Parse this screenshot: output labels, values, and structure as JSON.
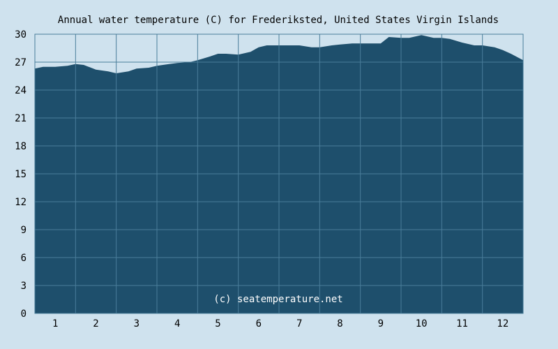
{
  "chart_data": {
    "type": "area",
    "title": "Annual water temperature (C) for Frederiksted, United States Virgin Islands",
    "watermark": "(c) seatemperature.net",
    "xlabel": "",
    "ylabel": "",
    "x_categories": [
      "1",
      "2",
      "3",
      "4",
      "5",
      "6",
      "7",
      "8",
      "9",
      "10",
      "11",
      "12"
    ],
    "y_ticks": [
      "0",
      "3",
      "6",
      "9",
      "12",
      "15",
      "18",
      "21",
      "24",
      "27",
      "30"
    ],
    "ylim": [
      0,
      30
    ],
    "xlim": [
      0.5,
      12.5
    ],
    "grid": true,
    "colors": {
      "background": "#cfe2ee",
      "fill": "#1e4f6c",
      "grid": "#4a7d9a",
      "text": "#000000",
      "watermark": "#ffffff"
    },
    "series": [
      {
        "x": [
          0.5,
          0.7,
          1.0,
          1.3,
          1.5,
          1.7,
          2.0,
          2.3,
          2.5,
          2.8,
          3.0,
          3.3,
          3.5,
          3.8,
          4.0,
          4.3,
          4.5,
          4.8,
          5.0,
          5.2,
          5.5,
          5.8,
          6.0,
          6.2,
          6.5,
          6.7,
          7.0,
          7.3,
          7.5,
          7.8,
          8.0,
          8.3,
          8.5,
          8.7,
          9.0,
          9.2,
          9.5,
          9.7,
          10.0,
          10.3,
          10.5,
          10.7,
          11.0,
          11.3,
          11.5,
          11.8,
          12.0,
          12.2,
          12.5
        ],
        "values": [
          26.3,
          26.5,
          26.5,
          26.6,
          26.8,
          26.7,
          26.2,
          26.0,
          25.8,
          26.0,
          26.3,
          26.4,
          26.6,
          26.8,
          26.9,
          27.0,
          27.2,
          27.6,
          27.9,
          27.9,
          27.8,
          28.1,
          28.6,
          28.8,
          28.8,
          28.8,
          28.8,
          28.6,
          28.6,
          28.8,
          28.9,
          29.0,
          29.0,
          29.0,
          29.0,
          29.7,
          29.6,
          29.6,
          29.9,
          29.6,
          29.6,
          29.5,
          29.1,
          28.8,
          28.8,
          28.6,
          28.3,
          27.9,
          27.2
        ]
      }
    ]
  }
}
